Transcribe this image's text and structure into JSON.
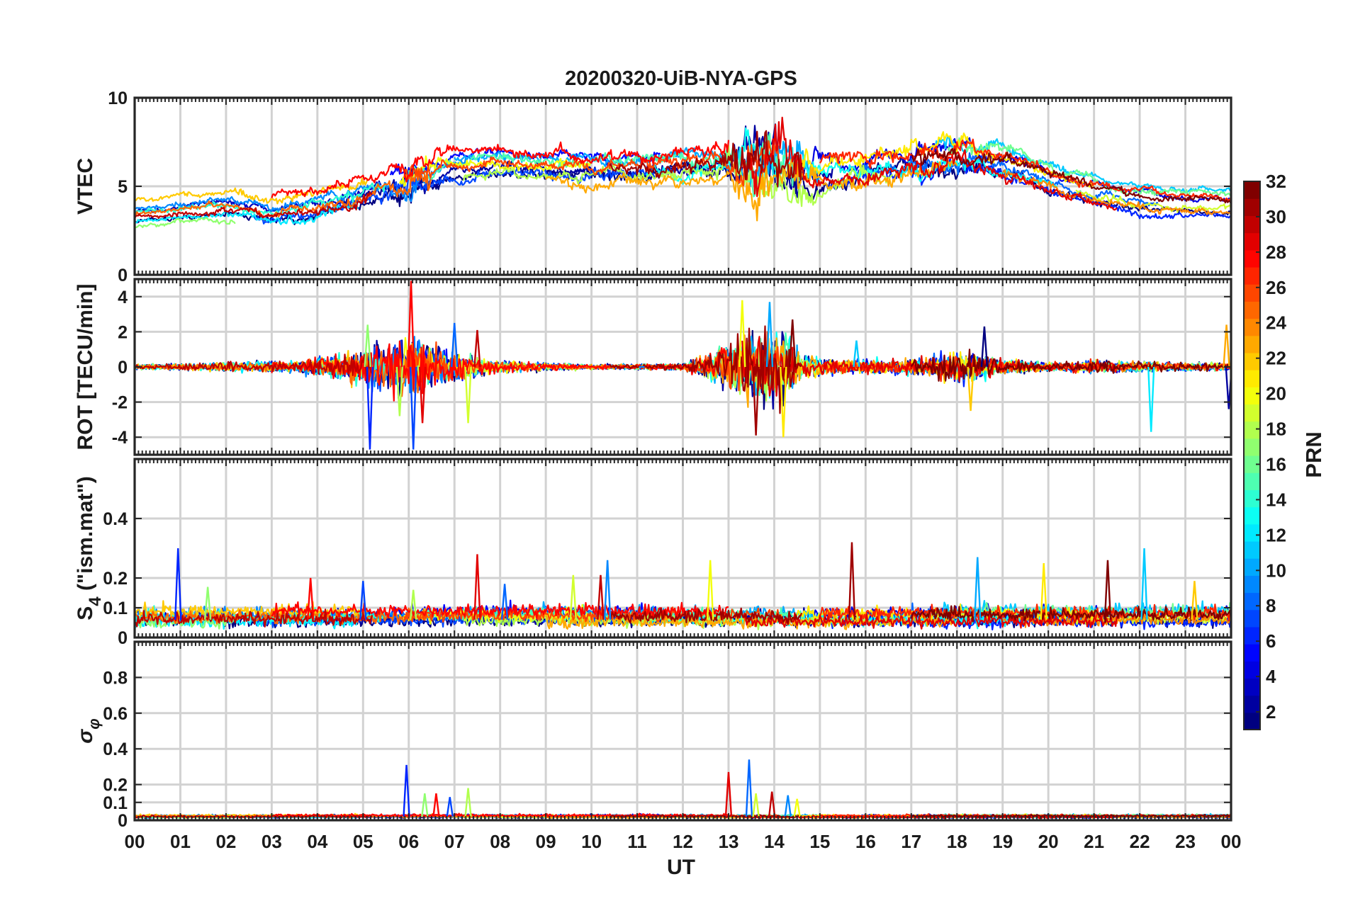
{
  "chart_data": {
    "type": "line",
    "title": "20200320-UiB-NYA-GPS",
    "xlabel": "UT",
    "x_tick_labels": [
      "00",
      "01",
      "02",
      "03",
      "04",
      "05",
      "06",
      "07",
      "08",
      "09",
      "10",
      "11",
      "12",
      "13",
      "14",
      "15",
      "16",
      "17",
      "18",
      "19",
      "20",
      "21",
      "22",
      "23",
      "00"
    ],
    "xlim_hours": [
      0,
      24
    ],
    "panels": [
      {
        "id": "vtec",
        "ylabel": "VTEC",
        "ylim": [
          0,
          10
        ],
        "yticks": [
          0,
          5,
          10
        ],
        "ytick_labels": [
          "0",
          "5",
          "10"
        ],
        "grid": true,
        "activity": {
          "base": [
            [
              0,
              3.5
            ],
            [
              1,
              3.8
            ],
            [
              2,
              4.0
            ],
            [
              3,
              3.6
            ],
            [
              4,
              3.9
            ],
            [
              5,
              4.6
            ],
            [
              6,
              5.3
            ],
            [
              7,
              6.0
            ],
            [
              8,
              6.2
            ],
            [
              9,
              6.1
            ],
            [
              10,
              6.0
            ],
            [
              11,
              6.0
            ],
            [
              12,
              6.2
            ],
            [
              13,
              6.3
            ],
            [
              14,
              6.0
            ],
            [
              15,
              5.8
            ],
            [
              16,
              6.1
            ],
            [
              17,
              6.4
            ],
            [
              18,
              6.6
            ],
            [
              19,
              6.3
            ],
            [
              20,
              5.4
            ],
            [
              21,
              4.6
            ],
            [
              22,
              4.2
            ],
            [
              23,
              4.0
            ],
            [
              24,
              3.9
            ]
          ],
          "spread": 1.6,
          "noise": [
            [
              0,
              0.15
            ],
            [
              5.5,
              0.4
            ],
            [
              6,
              0.9
            ],
            [
              7,
              0.3
            ],
            [
              12.8,
              0.5
            ],
            [
              13.5,
              1.8
            ],
            [
              14.5,
              1.6
            ],
            [
              15,
              0.5
            ],
            [
              18,
              0.6
            ],
            [
              20,
              0.3
            ],
            [
              24,
              0.2
            ]
          ]
        }
      },
      {
        "id": "rot",
        "ylabel": "ROT [TECU/min]",
        "ylim": [
          -5,
          5
        ],
        "yticks": [
          -4,
          -2,
          0,
          2,
          4
        ],
        "ytick_labels": [
          "-4",
          "-2",
          "0",
          "2",
          "4"
        ],
        "grid": true,
        "activity": {
          "base": [
            [
              0,
              0
            ],
            [
              24,
              0
            ]
          ],
          "spread": 0,
          "noise": [
            [
              0,
              0.12
            ],
            [
              3.5,
              0.3
            ],
            [
              5,
              0.9
            ],
            [
              6,
              1.6
            ],
            [
              7,
              0.7
            ],
            [
              8,
              0.3
            ],
            [
              10,
              0.12
            ],
            [
              12,
              0.15
            ],
            [
              12.8,
              0.9
            ],
            [
              13.5,
              1.7
            ],
            [
              14.2,
              1.8
            ],
            [
              14.6,
              0.6
            ],
            [
              15.5,
              0.35
            ],
            [
              17,
              0.4
            ],
            [
              18.2,
              0.8
            ],
            [
              19,
              0.4
            ],
            [
              20,
              0.2
            ],
            [
              21,
              0.3
            ],
            [
              22,
              0.25
            ],
            [
              24,
              0.2
            ]
          ],
          "spikes": [
            [
              5.15,
              -4.7
            ],
            [
              5.1,
              2.4
            ],
            [
              6.05,
              4.9
            ],
            [
              6.1,
              -4.7
            ],
            [
              5.8,
              -2.8
            ],
            [
              6.3,
              -3.2
            ],
            [
              7.0,
              2.5
            ],
            [
              7.3,
              -3.2
            ],
            [
              7.5,
              2.1
            ],
            [
              11.1,
              0
            ],
            [
              13.3,
              3.8
            ],
            [
              13.6,
              -3.9
            ],
            [
              13.9,
              3.7
            ],
            [
              14.2,
              -4.0
            ],
            [
              14.4,
              2.7
            ],
            [
              15.8,
              1.5
            ],
            [
              18.3,
              -2.5
            ],
            [
              18.6,
              2.3
            ],
            [
              22.25,
              -3.7
            ],
            [
              23.9,
              2.4
            ],
            [
              23.95,
              -2.4
            ]
          ]
        }
      },
      {
        "id": "s4",
        "ylabel": "S4 (\"ism.mat\")",
        "ylabel_main": "S",
        "ylabel_sub": "4",
        "ylabel_rest": " (\"ism.mat\")",
        "ylim": [
          0,
          0.6
        ],
        "yticks": [
          0,
          0.1,
          0.2,
          0.4
        ],
        "ytick_labels": [
          "0",
          "0.1",
          "0.2",
          "0.4"
        ],
        "grid": true,
        "activity": {
          "base": [
            [
              0,
              0.06
            ],
            [
              24,
              0.06
            ]
          ],
          "spread": 0.04,
          "noise": [
            [
              0,
              0.015
            ],
            [
              24,
              0.015
            ]
          ],
          "spikes": [
            [
              0.95,
              0.3
            ],
            [
              1.6,
              0.17
            ],
            [
              3.85,
              0.2
            ],
            [
              5.0,
              0.19
            ],
            [
              6.1,
              0.16
            ],
            [
              7.5,
              0.28
            ],
            [
              8.1,
              0.18
            ],
            [
              9.6,
              0.21
            ],
            [
              10.2,
              0.21
            ],
            [
              10.35,
              0.26
            ],
            [
              12.6,
              0.26
            ],
            [
              15.7,
              0.32
            ],
            [
              18.45,
              0.27
            ],
            [
              19.9,
              0.25
            ],
            [
              21.3,
              0.26
            ],
            [
              22.1,
              0.3
            ],
            [
              23.2,
              0.19
            ]
          ]
        }
      },
      {
        "id": "sigphi",
        "ylabel": "σφ",
        "ylabel_main": "σ",
        "ylabel_sub": "φ",
        "ylim": [
          0,
          1
        ],
        "yticks": [
          0,
          0.1,
          0.2,
          0.4,
          0.6,
          0.8
        ],
        "ytick_labels": [
          "0",
          "0.1",
          "0.2",
          "0.4",
          "0.6",
          "0.8"
        ],
        "grid": true,
        "activity": {
          "base": [
            [
              0,
              0.02
            ],
            [
              24,
              0.02
            ]
          ],
          "spread": 0.01,
          "noise": [
            [
              0,
              0.005
            ],
            [
              24,
              0.005
            ]
          ],
          "spikes": [
            [
              5.95,
              0.31
            ],
            [
              6.35,
              0.15
            ],
            [
              6.6,
              0.15
            ],
            [
              6.9,
              0.13
            ],
            [
              7.3,
              0.18
            ],
            [
              13.0,
              0.27
            ],
            [
              13.45,
              0.34
            ],
            [
              13.6,
              0.15
            ],
            [
              13.95,
              0.16
            ],
            [
              14.3,
              0.14
            ],
            [
              14.5,
              0.12
            ]
          ]
        }
      }
    ],
    "colorbar": {
      "label": "PRN",
      "range": [
        1,
        32
      ],
      "ticks": [
        2,
        4,
        6,
        8,
        10,
        12,
        14,
        16,
        18,
        20,
        22,
        24,
        26,
        28,
        30,
        32
      ],
      "tick_labels": [
        "2",
        "4",
        "6",
        "8",
        "10",
        "12",
        "14",
        "16",
        "18",
        "20",
        "22",
        "24",
        "26",
        "28",
        "30",
        "32"
      ],
      "colormap": "jet"
    },
    "series": [
      {
        "prn": 1,
        "start": 0.0,
        "end": 24.0
      },
      {
        "prn": 2,
        "start": 4.5,
        "end": 15.3
      },
      {
        "prn": 3,
        "start": 0.0,
        "end": 5.4
      },
      {
        "prn": 4,
        "start": 14.8,
        "end": 24.0
      },
      {
        "prn": 5,
        "start": 5.6,
        "end": 11.5
      },
      {
        "prn": 6,
        "start": 15.2,
        "end": 24.0
      },
      {
        "prn": 7,
        "start": 2.6,
        "end": 11.8
      },
      {
        "prn": 8,
        "start": 15.9,
        "end": 22.4
      },
      {
        "prn": 9,
        "start": 0.0,
        "end": 7.4
      },
      {
        "prn": 10,
        "start": 7.0,
        "end": 15.0
      },
      {
        "prn": 11,
        "start": 17.5,
        "end": 24.0
      },
      {
        "prn": 12,
        "start": 0.0,
        "end": 4.9
      },
      {
        "prn": 13,
        "start": 11.2,
        "end": 20.2
      },
      {
        "prn": 14,
        "start": 0.0,
        "end": 5.5
      },
      {
        "prn": 15,
        "start": 6.0,
        "end": 14.6
      },
      {
        "prn": 16,
        "start": 17.8,
        "end": 24.0
      },
      {
        "prn": 17,
        "start": 0.0,
        "end": 2.2
      },
      {
        "prn": 18,
        "start": 7.2,
        "end": 16.6
      },
      {
        "prn": 19,
        "start": 20.6,
        "end": 24.0
      },
      {
        "prn": 20,
        "start": 5.8,
        "end": 10.0
      },
      {
        "prn": 21,
        "start": 14.5,
        "end": 21.0
      },
      {
        "prn": 22,
        "start": 0.0,
        "end": 5.1
      },
      {
        "prn": 23,
        "start": 9.0,
        "end": 18.0
      },
      {
        "prn": 24,
        "start": 19.0,
        "end": 24.0
      },
      {
        "prn": 25,
        "start": 0.0,
        "end": 6.5
      },
      {
        "prn": 26,
        "start": 5.9,
        "end": 14.1
      },
      {
        "prn": 27,
        "start": 15.0,
        "end": 24.0
      },
      {
        "prn": 28,
        "start": 3.0,
        "end": 13.0
      },
      {
        "prn": 29,
        "start": 13.3,
        "end": 21.5
      },
      {
        "prn": 30,
        "start": 0.0,
        "end": 5.2
      },
      {
        "prn": 31,
        "start": 10.4,
        "end": 14.6
      },
      {
        "prn": 32,
        "start": 17.0,
        "end": 24.0
      }
    ]
  }
}
